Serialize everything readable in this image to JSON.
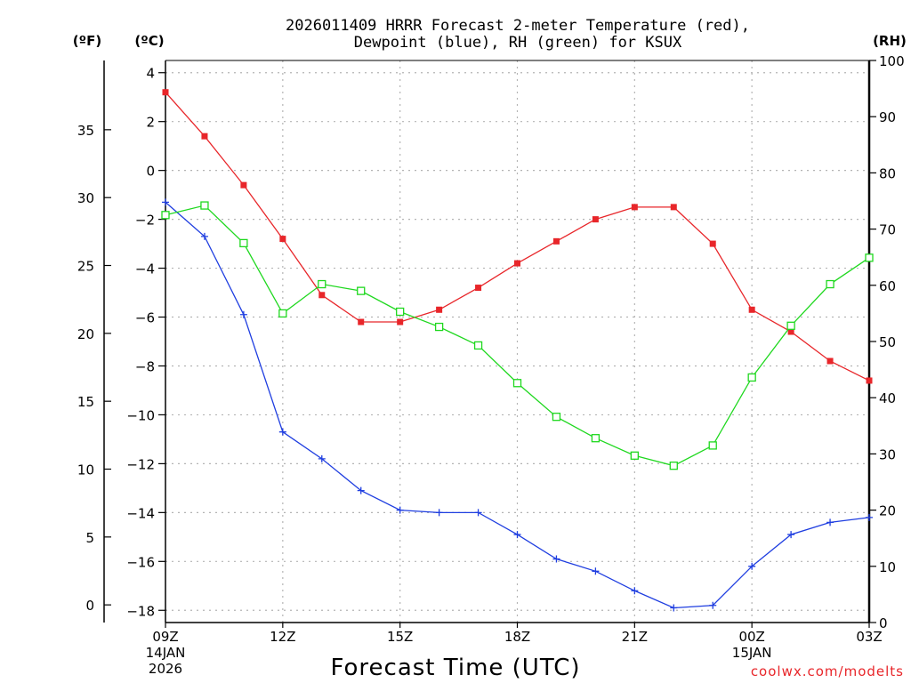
{
  "chart_data": {
    "type": "line",
    "title": "2026011409 HRRR Forecast 2-meter Temperature (red),",
    "subtitle": "Dewpoint (blue), RH (green) for KSUX",
    "xlabel": "Forecast Time (UTC)",
    "credit": "coolwx.com/modelts",
    "units": {
      "left_f": "(ºF)",
      "left_c": "(ºC)",
      "right": "(RH)"
    },
    "x_hours": [
      0,
      1,
      2,
      3,
      4,
      5,
      6,
      7,
      8,
      9,
      10,
      11,
      12,
      13,
      14,
      15,
      16,
      17,
      18
    ],
    "x_ticks": [
      {
        "hour": 0,
        "label": "09Z",
        "sub1": "14JAN",
        "sub2": "2026"
      },
      {
        "hour": 3,
        "label": "12Z",
        "sub1": "",
        "sub2": ""
      },
      {
        "hour": 6,
        "label": "15Z",
        "sub1": "",
        "sub2": ""
      },
      {
        "hour": 9,
        "label": "18Z",
        "sub1": "",
        "sub2": ""
      },
      {
        "hour": 12,
        "label": "21Z",
        "sub1": "",
        "sub2": ""
      },
      {
        "hour": 15,
        "label": "00Z",
        "sub1": "15JAN",
        "sub2": ""
      },
      {
        "hour": 18,
        "label": "03Z",
        "sub1": "",
        "sub2": ""
      }
    ],
    "ylim_c": [
      -18.5,
      4.5
    ],
    "yticks_c": [
      4,
      2,
      0,
      -2,
      -4,
      -6,
      -8,
      -10,
      -12,
      -14,
      -16,
      -18
    ],
    "yticks_f": [
      35,
      30,
      25,
      20,
      15,
      10,
      5,
      0
    ],
    "ylim_rh": [
      0,
      100
    ],
    "yticks_rh": [
      100,
      90,
      80,
      70,
      60,
      50,
      40,
      30,
      20,
      10,
      0
    ],
    "series": [
      {
        "name": "2-meter Temperature",
        "axis": "C",
        "color": "#e8262a",
        "marker": "filled-square",
        "values": [
          3.2,
          1.4,
          -0.6,
          -2.8,
          -5.1,
          -6.2,
          -6.2,
          -5.7,
          -4.8,
          -3.8,
          -2.9,
          -2.0,
          -1.5,
          -1.5,
          -3.0,
          -5.7,
          -6.6,
          -7.8,
          -8.6
        ]
      },
      {
        "name": "Dewpoint",
        "axis": "C",
        "color": "#1f3ee0",
        "marker": "plus",
        "values": [
          -1.3,
          -2.7,
          -5.9,
          -10.7,
          -11.8,
          -13.1,
          -13.9,
          -14.0,
          -14.0,
          -14.9,
          -15.9,
          -16.4,
          -17.2,
          -17.9,
          -17.8,
          -16.2,
          -14.9,
          -14.4,
          -14.2
        ]
      },
      {
        "name": "RH",
        "axis": "RH",
        "color": "#1fd81f",
        "marker": "open-square",
        "values": [
          72.5,
          74.2,
          67.5,
          55.0,
          60.2,
          59.0,
          55.3,
          52.6,
          49.3,
          42.6,
          36.6,
          32.8,
          29.7,
          27.9,
          31.5,
          43.6,
          52.8,
          60.2,
          64.9
        ]
      }
    ]
  }
}
